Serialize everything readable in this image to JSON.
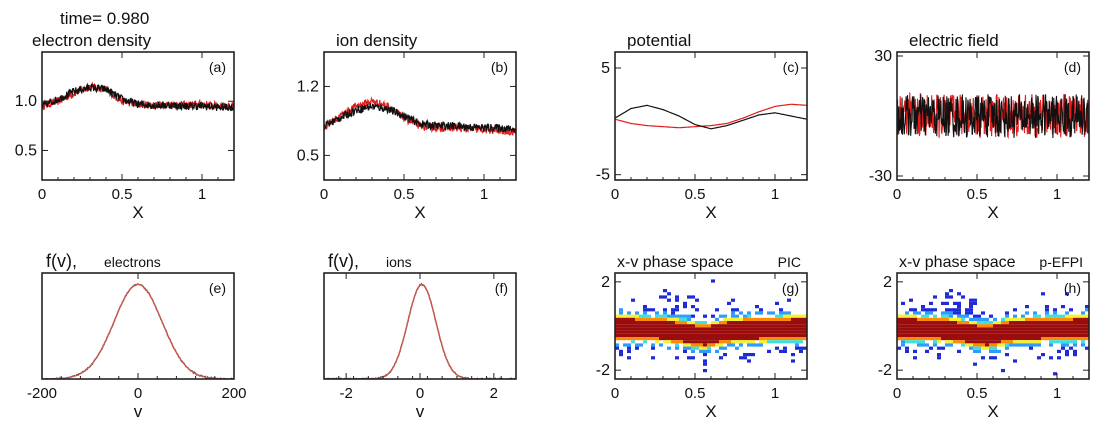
{
  "figure": {
    "time_label": "time= 0.980",
    "colors": {
      "series_a": "#111111",
      "series_b": "#e11d1d",
      "fv_fit": "#d0584e",
      "fv_data": "#333333"
    }
  },
  "chart_data": [
    {
      "id": "a",
      "type": "line",
      "title": "electron density",
      "panel_label": "(a)",
      "xlabel": "X",
      "ylabel": "",
      "xlim": [
        0,
        1.2
      ],
      "ylim": [
        0.2,
        1.5
      ],
      "xticks": [
        0,
        0.5,
        1
      ],
      "xtick_labels": [
        "0",
        "0.5",
        "1"
      ],
      "yticks": [
        1.0,
        0.5
      ],
      "ytick_labels": [
        "1.0",
        "0.5"
      ],
      "noise": 0.04,
      "series": [
        {
          "color": "#e11d1d",
          "x": [
            0,
            0.1,
            0.2,
            0.3,
            0.4,
            0.5,
            0.6,
            0.7,
            0.8,
            0.9,
            1.0,
            1.1,
            1.2
          ],
          "y": [
            0.95,
            1.0,
            1.08,
            1.15,
            1.12,
            1.0,
            0.97,
            0.96,
            0.97,
            0.96,
            0.97,
            0.95,
            0.95
          ]
        },
        {
          "color": "#111111",
          "x": [
            0,
            0.1,
            0.2,
            0.3,
            0.4,
            0.5,
            0.6,
            0.7,
            0.8,
            0.9,
            1.0,
            1.1,
            1.2
          ],
          "y": [
            0.95,
            1.02,
            1.1,
            1.14,
            1.12,
            1.02,
            0.97,
            0.96,
            0.96,
            0.95,
            0.95,
            0.94,
            0.94
          ]
        }
      ]
    },
    {
      "id": "b",
      "type": "line",
      "title": "ion density",
      "panel_label": "(b)",
      "xlabel": "X",
      "ylabel": "",
      "xlim": [
        0,
        1.2
      ],
      "ylim": [
        0.25,
        1.55
      ],
      "xticks": [
        0,
        0.5,
        1
      ],
      "xtick_labels": [
        "0",
        "0.5",
        "1"
      ],
      "yticks": [
        1.2,
        0.5
      ],
      "ytick_labels": [
        "1.2",
        "0.5"
      ],
      "noise": 0.04,
      "series": [
        {
          "color": "#e11d1d",
          "x": [
            0,
            0.1,
            0.2,
            0.3,
            0.4,
            0.5,
            0.6,
            0.7,
            0.8,
            0.9,
            1.0,
            1.1,
            1.2
          ],
          "y": [
            0.78,
            0.9,
            1.0,
            1.05,
            1.0,
            0.88,
            0.8,
            0.78,
            0.78,
            0.77,
            0.76,
            0.75,
            0.74
          ]
        },
        {
          "color": "#111111",
          "x": [
            0,
            0.1,
            0.2,
            0.3,
            0.4,
            0.5,
            0.6,
            0.7,
            0.8,
            0.9,
            1.0,
            1.1,
            1.2
          ],
          "y": [
            0.8,
            0.88,
            0.96,
            1.0,
            0.97,
            0.9,
            0.82,
            0.8,
            0.8,
            0.79,
            0.78,
            0.78,
            0.76
          ]
        }
      ]
    },
    {
      "id": "c",
      "type": "line",
      "title": "potential",
      "panel_label": "(c)",
      "xlabel": "X",
      "ylabel": "",
      "xlim": [
        0,
        1.2
      ],
      "ylim": [
        -5.5,
        6.5
      ],
      "xticks": [
        0,
        0.5,
        1
      ],
      "xtick_labels": [
        "0",
        "0.5",
        "1"
      ],
      "yticks": [
        5,
        -5
      ],
      "ytick_labels": [
        "5",
        "-5"
      ],
      "noise": 0,
      "series": [
        {
          "color": "#e11d1d",
          "x": [
            0,
            0.1,
            0.2,
            0.3,
            0.4,
            0.5,
            0.6,
            0.7,
            0.8,
            0.9,
            1.0,
            1.1,
            1.2
          ],
          "y": [
            0.2,
            -0.2,
            -0.4,
            -0.5,
            -0.6,
            -0.5,
            -0.4,
            -0.2,
            0.3,
            0.9,
            1.4,
            1.6,
            1.5
          ]
        },
        {
          "color": "#111111",
          "x": [
            0,
            0.1,
            0.2,
            0.3,
            0.4,
            0.5,
            0.6,
            0.7,
            0.8,
            0.9,
            1.0,
            1.1,
            1.2
          ],
          "y": [
            0.3,
            1.2,
            1.5,
            1.1,
            0.5,
            -0.3,
            -0.7,
            -0.4,
            0.1,
            0.6,
            0.8,
            0.5,
            0.2
          ]
        }
      ]
    },
    {
      "id": "d",
      "type": "line",
      "title": "electric field",
      "panel_label": "(d)",
      "xlabel": "X",
      "ylabel": "",
      "xlim": [
        0,
        1.2
      ],
      "ylim": [
        -32,
        32
      ],
      "xticks": [
        0,
        0.5,
        1
      ],
      "xtick_labels": [
        "0",
        "0.5",
        "1"
      ],
      "yticks": [
        30,
        -30
      ],
      "ytick_labels": [
        "30",
        "-30"
      ],
      "noise": 11,
      "series": [
        {
          "color": "#e11d1d",
          "x": [
            0,
            0.2,
            0.4,
            0.6,
            0.8,
            1.0,
            1.2
          ],
          "y": [
            2,
            0,
            0,
            0,
            0,
            0,
            0
          ]
        },
        {
          "color": "#111111",
          "x": [
            0,
            0.2,
            0.4,
            0.6,
            0.8,
            1.0,
            1.2
          ],
          "y": [
            0,
            0,
            0,
            0,
            0,
            0,
            0
          ]
        }
      ]
    },
    {
      "id": "e",
      "type": "line",
      "title": "f(v),",
      "subtitle": "electrons",
      "panel_label": "(e)",
      "xlabel": "v",
      "ylabel": "",
      "xlim": [
        -200,
        200
      ],
      "ylim": [
        0,
        1.12
      ],
      "xticks": [
        -200,
        0,
        200
      ],
      "xtick_labels": [
        "-200",
        "0",
        "200"
      ],
      "yticks": [],
      "ytick_labels": [],
      "gaussian": {
        "mean": 0,
        "sigma": 50
      }
    },
    {
      "id": "f",
      "type": "line",
      "title": "f(v),",
      "subtitle": "ions",
      "panel_label": "(f)",
      "xlabel": "v",
      "ylabel": "",
      "xlim": [
        -2.6,
        2.6
      ],
      "ylim": [
        0,
        1.12
      ],
      "xticks": [
        -2,
        0,
        2
      ],
      "xtick_labels": [
        "-2",
        "0",
        "2"
      ],
      "yticks": [],
      "ytick_labels": [],
      "gaussian": {
        "mean": 0.05,
        "sigma": 0.38
      }
    },
    {
      "id": "g",
      "type": "heatmap",
      "title": "x-v phase space",
      "corner_label": "PIC",
      "panel_label": "(g)",
      "xlabel": "X",
      "ylabel": "",
      "xlim": [
        0,
        1.2
      ],
      "ylim": [
        -2.4,
        2.4
      ],
      "xticks": [
        0,
        0.5,
        1
      ],
      "xtick_labels": [
        "0",
        "0.5",
        "1"
      ],
      "yticks": [
        2,
        -2
      ],
      "ytick_labels": [
        "2",
        "-2"
      ],
      "center_x": [
        0,
        0.3,
        0.55,
        0.7,
        1.2
      ],
      "center_v": [
        0.0,
        -0.1,
        -0.4,
        -0.15,
        0.0
      ],
      "colormap": [
        "#1f2bd6",
        "#2f9bff",
        "#3fe0e0",
        "#f2f230",
        "#ff8c00",
        "#9b0d0d"
      ]
    },
    {
      "id": "h",
      "type": "heatmap",
      "title": "x-v phase space",
      "corner_label": "p-EFPI",
      "panel_label": "(h)",
      "xlabel": "X",
      "ylabel": "",
      "xlim": [
        0,
        1.2
      ],
      "ylim": [
        -2.4,
        2.4
      ],
      "xticks": [
        0,
        0.5,
        1
      ],
      "xtick_labels": [
        "0",
        "0.5",
        "1"
      ],
      "yticks": [
        2,
        -2
      ],
      "ytick_labels": [
        "2",
        "-2"
      ],
      "center_x": [
        0,
        0.3,
        0.55,
        0.7,
        1.2
      ],
      "center_v": [
        0.0,
        -0.1,
        -0.4,
        -0.15,
        0.0
      ],
      "colormap": [
        "#1f2bd6",
        "#2f9bff",
        "#3fe0e0",
        "#f2f230",
        "#ff8c00",
        "#9b0d0d"
      ]
    }
  ]
}
